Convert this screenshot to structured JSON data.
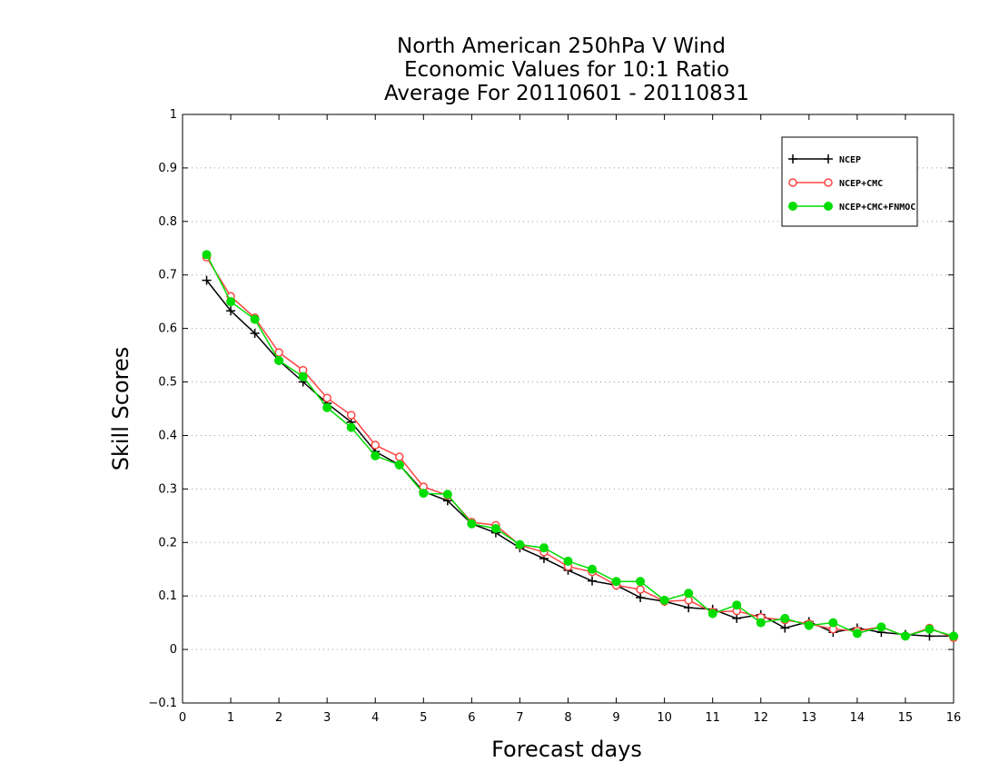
{
  "chart_data": {
    "type": "line",
    "title_lines": [
      "North American 250hPa V Wind",
      "Economic Values for 10:1 Ratio",
      "Average For 20110601 - 20110831"
    ],
    "xlabel": "Forecast days",
    "ylabel": "Skill Scores",
    "xlim": [
      0,
      16
    ],
    "ylim": [
      -0.1,
      1
    ],
    "x_ticks": [
      "0",
      "1",
      "2",
      "3",
      "4",
      "5",
      "6",
      "7",
      "8",
      "9",
      "10",
      "11",
      "12",
      "13",
      "14",
      "15",
      "16"
    ],
    "y_ticks": [
      "-0.1",
      "0",
      "0.1",
      "0.2",
      "0.3",
      "0.4",
      "0.5",
      "0.6",
      "0.7",
      "0.8",
      "0.9",
      "1"
    ],
    "grid": "horizontal dotted",
    "legend_position": "top-right",
    "x": [
      0.5,
      1,
      1.5,
      2,
      2.5,
      3,
      3.5,
      4,
      4.5,
      5,
      5.5,
      6,
      6.5,
      7,
      7.5,
      8,
      8.5,
      9,
      9.5,
      10,
      10.5,
      11,
      11.5,
      12,
      12.5,
      13,
      13.5,
      14,
      14.5,
      15,
      15.5,
      16
    ],
    "series": [
      {
        "name": "NCEP",
        "color": "#000000",
        "marker": "plus",
        "values": [
          0.69,
          0.633,
          0.591,
          0.54,
          0.5,
          0.46,
          0.425,
          0.37,
          0.345,
          0.295,
          0.278,
          0.235,
          0.218,
          0.19,
          0.17,
          0.148,
          0.128,
          0.12,
          0.097,
          0.09,
          0.078,
          0.075,
          0.058,
          0.065,
          0.04,
          0.052,
          0.032,
          0.04,
          0.032,
          0.028,
          0.025,
          0.025
        ]
      },
      {
        "name": "NCEP+CMC",
        "color": "#ff4444",
        "marker": "open-circle",
        "values": [
          0.733,
          0.66,
          0.62,
          0.555,
          0.522,
          0.47,
          0.438,
          0.382,
          0.36,
          0.304,
          0.288,
          0.238,
          0.232,
          0.195,
          0.182,
          0.155,
          0.145,
          0.12,
          0.112,
          0.09,
          0.092,
          0.07,
          0.072,
          0.06,
          0.055,
          0.048,
          0.038,
          0.035,
          0.042,
          0.025,
          0.04,
          0.022
        ]
      },
      {
        "name": "NCEP+CMC+FNMOC",
        "color": "#00dd00",
        "marker": "filled-circle",
        "values": [
          0.738,
          0.65,
          0.617,
          0.54,
          0.51,
          0.452,
          0.415,
          0.362,
          0.345,
          0.292,
          0.29,
          0.235,
          0.226,
          0.196,
          0.19,
          0.165,
          0.15,
          0.127,
          0.127,
          0.092,
          0.105,
          0.067,
          0.083,
          0.05,
          0.058,
          0.045,
          0.05,
          0.03,
          0.042,
          0.025,
          0.038,
          0.025
        ]
      }
    ]
  }
}
